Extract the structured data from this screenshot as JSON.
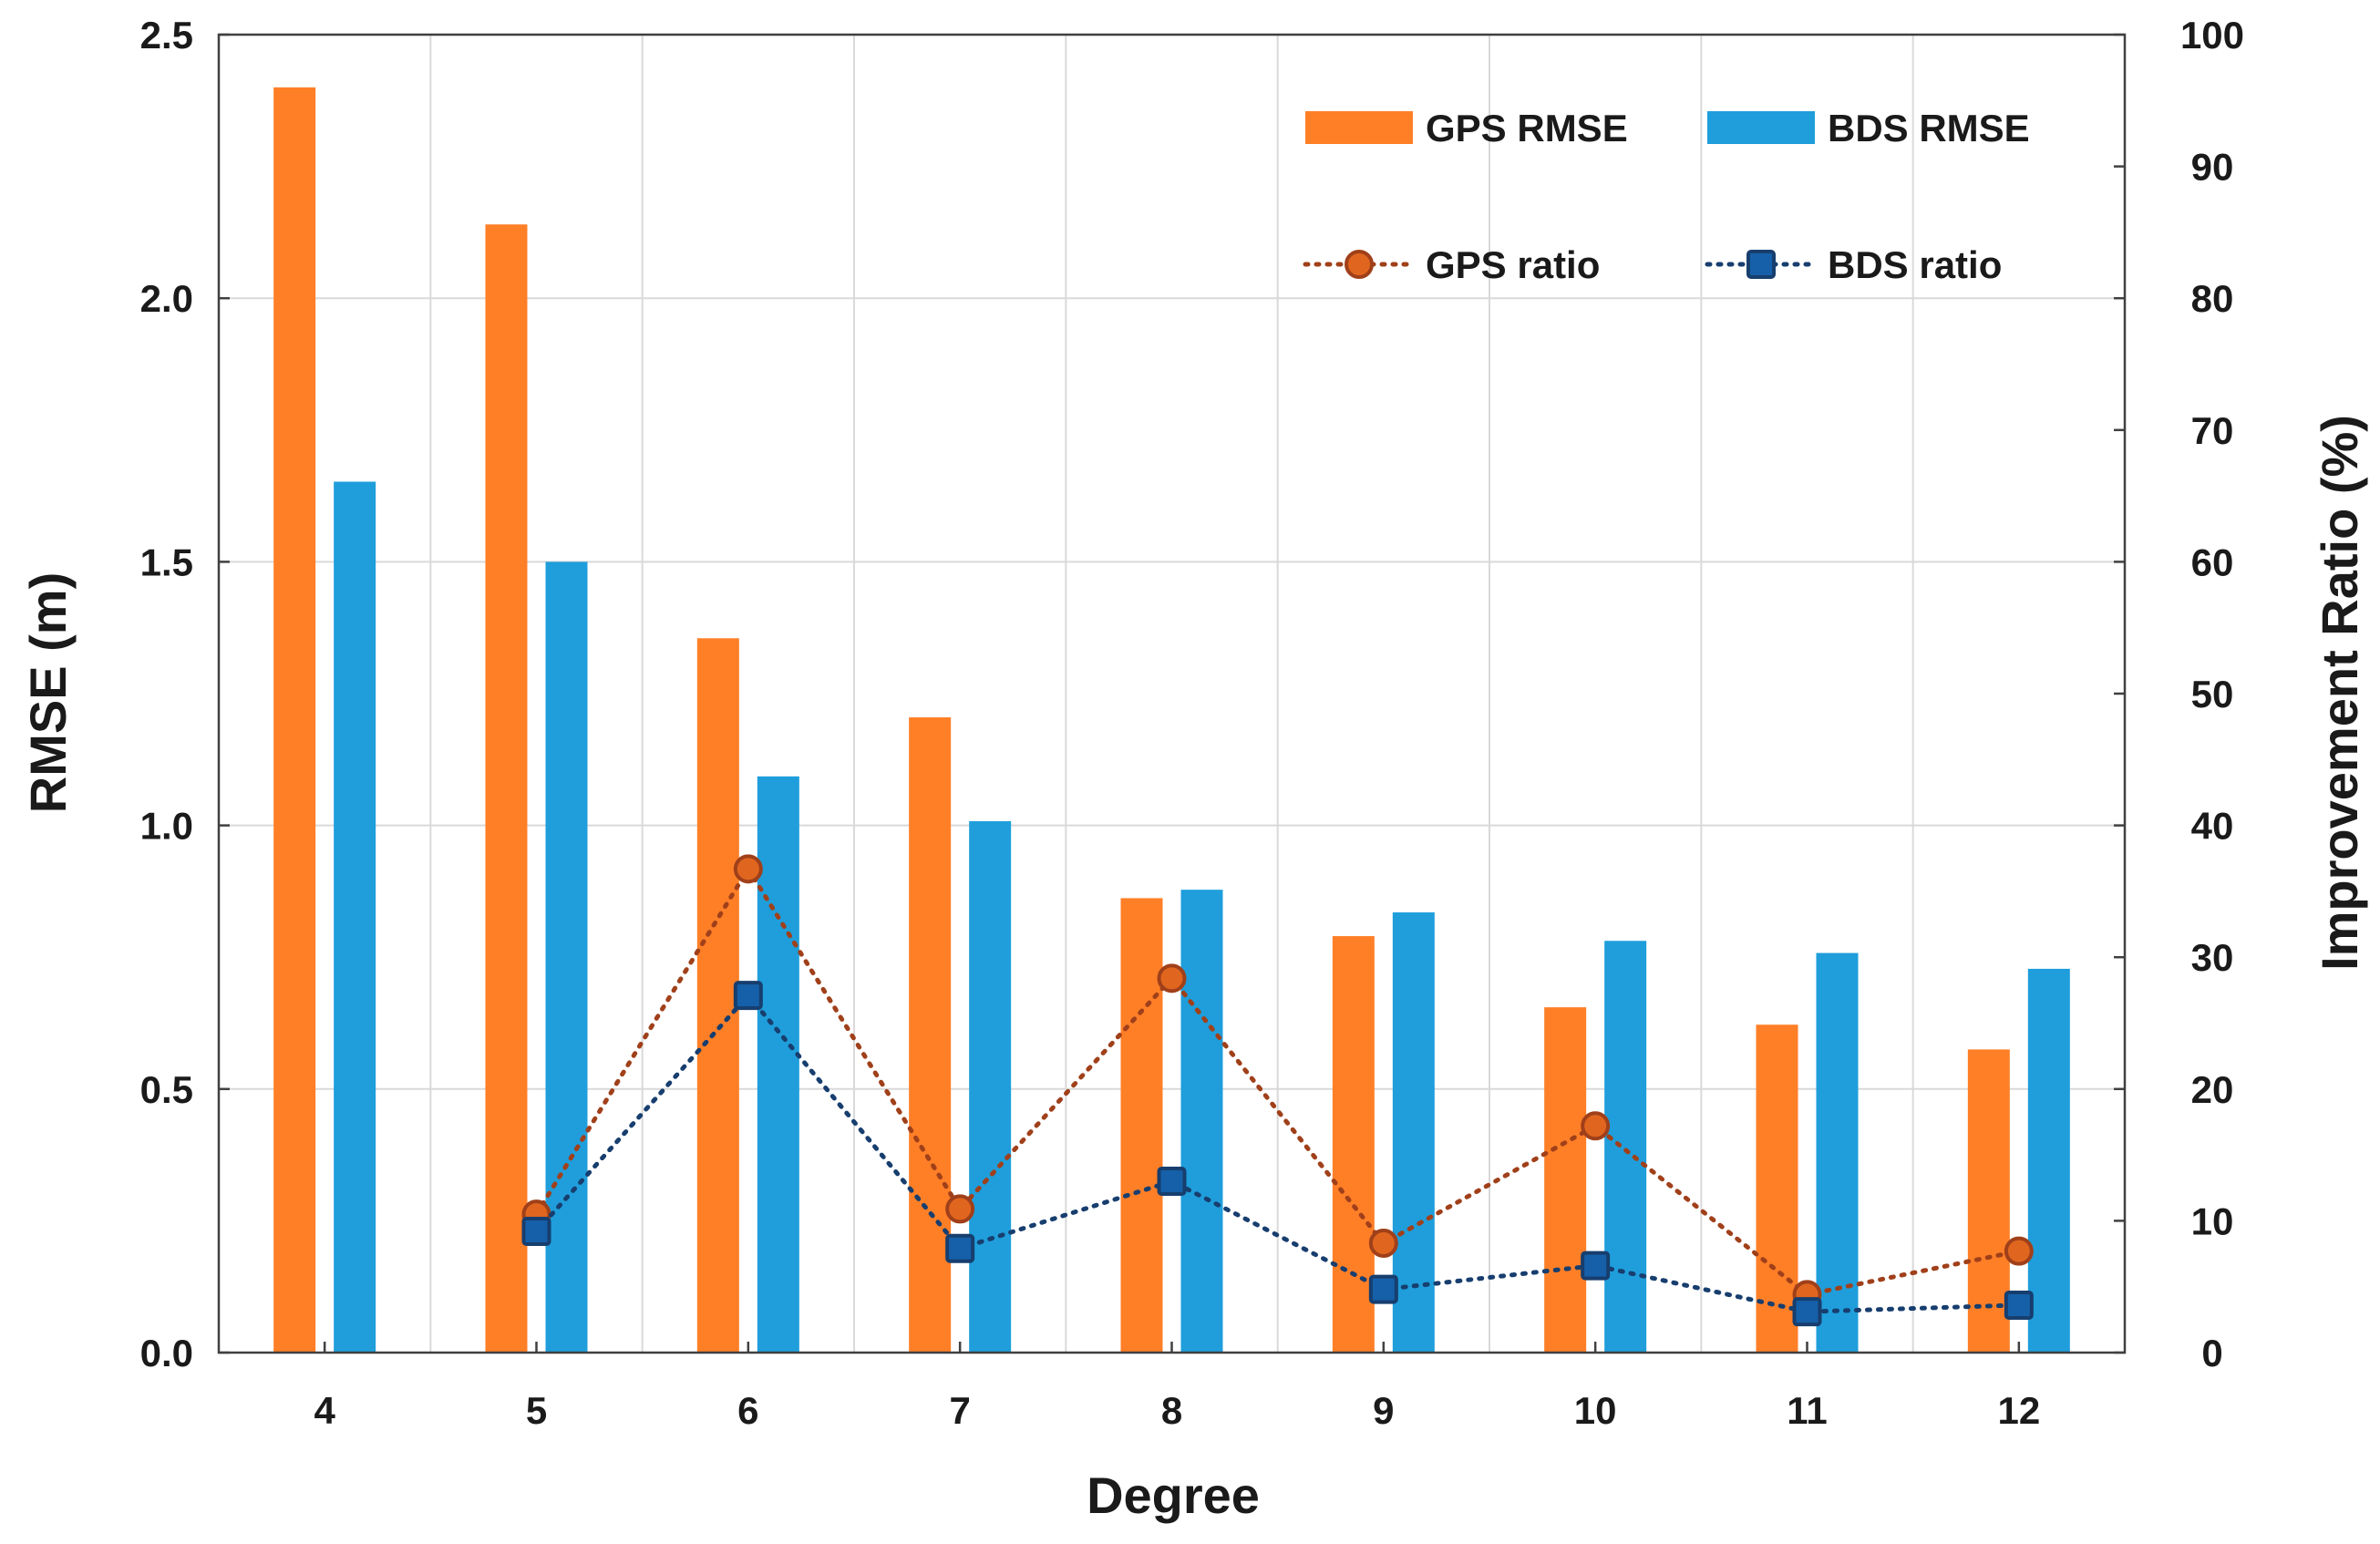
{
  "chart_data": {
    "type": "bar+line",
    "title": "",
    "xlabel": "Degree",
    "ylabel": "RMSE (m)",
    "y2label": "Improvement Ratio (%)",
    "categories": [
      "4",
      "5",
      "6",
      "7",
      "8",
      "9",
      "10",
      "11",
      "12"
    ],
    "ylim": [
      0,
      2.5
    ],
    "y2lim": [
      0,
      100
    ],
    "yticks": [
      "0.0",
      "0.5",
      "1.0",
      "1.5",
      "2.0",
      "2.5"
    ],
    "y2ticks": [
      "0",
      "10",
      "20",
      "30",
      "40",
      "50",
      "60",
      "70",
      "80",
      "90",
      "100"
    ],
    "grid": true,
    "legend_position": "top-right",
    "bar_series": [
      {
        "name": "GPS RMSE",
        "color": "#FF7F27",
        "values": [
          2.4,
          2.14,
          1.355,
          1.205,
          0.862,
          0.79,
          0.655,
          0.622,
          0.575
        ]
      },
      {
        "name": "BDS RMSE",
        "color": "#1F9EDB",
        "values": [
          1.652,
          1.5,
          1.093,
          1.008,
          0.878,
          0.835,
          0.781,
          0.758,
          0.728
        ]
      }
    ],
    "line_series": [
      {
        "name": "GPS ratio",
        "color": "#A0401A",
        "marker_fill": "#E0661F",
        "marker": "circle",
        "values": [
          null,
          10.5,
          36.7,
          10.9,
          28.4,
          8.3,
          17.2,
          4.4,
          7.7
        ]
      },
      {
        "name": "BDS ratio",
        "color": "#173E6E",
        "marker_fill": "#1560A8",
        "marker": "square",
        "values": [
          null,
          9.2,
          27.1,
          7.9,
          13.0,
          4.8,
          6.6,
          3.1,
          3.6
        ]
      }
    ]
  }
}
